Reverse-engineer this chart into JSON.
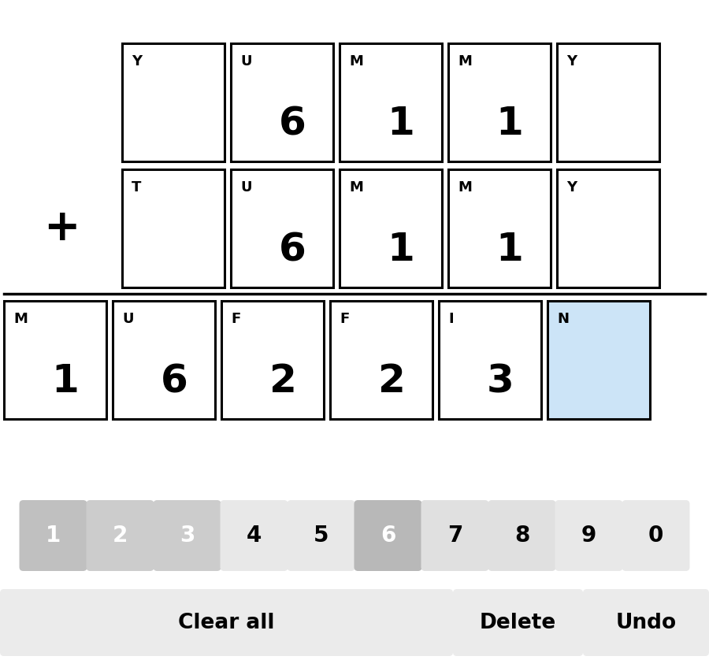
{
  "bg_color": "#ffffff",
  "row1": [
    {
      "letter": "Y",
      "number": null
    },
    {
      "letter": "U",
      "number": "6"
    },
    {
      "letter": "M",
      "number": "1"
    },
    {
      "letter": "M",
      "number": "1"
    },
    {
      "letter": "Y",
      "number": null
    }
  ],
  "row2": [
    {
      "letter": "T",
      "number": null
    },
    {
      "letter": "U",
      "number": "6"
    },
    {
      "letter": "M",
      "number": "1"
    },
    {
      "letter": "M",
      "number": "1"
    },
    {
      "letter": "Y",
      "number": null
    }
  ],
  "row3": [
    {
      "letter": "M",
      "number": "1",
      "highlight": false
    },
    {
      "letter": "U",
      "number": "6",
      "highlight": false
    },
    {
      "letter": "F",
      "number": "2",
      "highlight": false
    },
    {
      "letter": "F",
      "number": "2",
      "highlight": false
    },
    {
      "letter": "I",
      "number": "3",
      "highlight": false
    },
    {
      "letter": "N",
      "number": null,
      "highlight": true
    }
  ],
  "keyboard_digits": [
    "1",
    "2",
    "3",
    "4",
    "5",
    "6",
    "7",
    "8",
    "9",
    "0"
  ],
  "keyboard_colors": [
    "#c0c0c0",
    "#cccccc",
    "#cccccc",
    "#e8e8e8",
    "#e8e8e8",
    "#b8b8b8",
    "#e0e0e0",
    "#e0e0e0",
    "#e8e8e8",
    "#e8e8e8"
  ],
  "keyboard_text_colors": [
    "#ffffff",
    "#ffffff",
    "#ffffff",
    "#000000",
    "#000000",
    "#ffffff",
    "#000000",
    "#000000",
    "#000000",
    "#000000"
  ],
  "highlight_color": "#cce4f7",
  "cell_border_color": "#000000",
  "btn_color": "#ebebeb",
  "small_letter_fontsize": 13,
  "large_number_fontsize": 36,
  "plus_fontsize": 40,
  "kb_fontsize": 20,
  "btn_fontsize": 19
}
